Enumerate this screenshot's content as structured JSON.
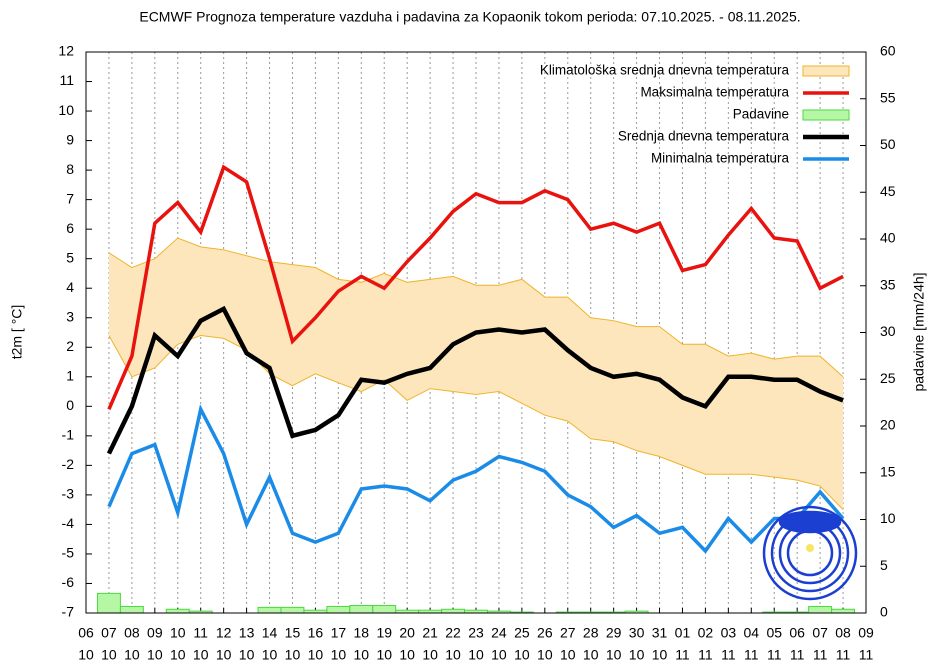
{
  "chart_data": {
    "type": "line",
    "title": "ECMWF Prognoza temperature vazduha i padavina za Kopaonik tokom perioda: 07.10.2025. - 08.11.2025.",
    "y_label": "t2m [ °C]",
    "y2_label": "padavine [mm/24h]",
    "categories": [
      [
        "06",
        "10"
      ],
      [
        "07",
        "10"
      ],
      [
        "08",
        "10"
      ],
      [
        "09",
        "10"
      ],
      [
        "10",
        "10"
      ],
      [
        "11",
        "10"
      ],
      [
        "12",
        "10"
      ],
      [
        "13",
        "10"
      ],
      [
        "14",
        "10"
      ],
      [
        "15",
        "10"
      ],
      [
        "16",
        "10"
      ],
      [
        "17",
        "10"
      ],
      [
        "18",
        "10"
      ],
      [
        "19",
        "10"
      ],
      [
        "20",
        "10"
      ],
      [
        "21",
        "10"
      ],
      [
        "22",
        "10"
      ],
      [
        "23",
        "10"
      ],
      [
        "24",
        "10"
      ],
      [
        "25",
        "10"
      ],
      [
        "26",
        "10"
      ],
      [
        "27",
        "10"
      ],
      [
        "28",
        "10"
      ],
      [
        "29",
        "10"
      ],
      [
        "30",
        "10"
      ],
      [
        "31",
        "10"
      ],
      [
        "01",
        "11"
      ],
      [
        "02",
        "11"
      ],
      [
        "03",
        "11"
      ],
      [
        "04",
        "11"
      ],
      [
        "05",
        "11"
      ],
      [
        "06",
        "11"
      ],
      [
        "07",
        "11"
      ],
      [
        "08",
        "11"
      ],
      [
        "09",
        "11"
      ]
    ],
    "ylim": [
      -7,
      12
    ],
    "yticks": [
      -7,
      -6,
      -5,
      -4,
      -3,
      -2,
      -1,
      0,
      1,
      2,
      3,
      4,
      5,
      6,
      7,
      8,
      9,
      10,
      11,
      12
    ],
    "y2lim": [
      0,
      60
    ],
    "y2ticks": [
      0,
      5,
      10,
      15,
      20,
      25,
      30,
      35,
      40,
      45,
      50,
      55,
      60
    ],
    "grid": "vertical-dotted",
    "legend": "top-right",
    "series": [
      {
        "name": "Klimatološka srednja dnevna temperatura",
        "kind": "band",
        "color": "#fde6bc",
        "edge_color": "#f0b429",
        "upper": [
          null,
          5.2,
          4.7,
          5.0,
          5.7,
          5.4,
          5.3,
          5.1,
          4.9,
          4.8,
          4.7,
          4.3,
          4.2,
          4.5,
          4.2,
          4.3,
          4.4,
          4.1,
          4.1,
          4.3,
          3.7,
          3.7,
          3.0,
          2.9,
          2.7,
          2.7,
          2.1,
          2.1,
          1.7,
          1.8,
          1.6,
          1.7,
          1.7,
          1.0,
          null
        ],
        "lower": [
          null,
          2.4,
          1.0,
          1.3,
          2.1,
          2.4,
          2.3,
          1.9,
          1.1,
          0.7,
          1.1,
          0.8,
          0.5,
          0.9,
          0.2,
          0.6,
          0.5,
          0.4,
          0.5,
          0.1,
          -0.3,
          -0.5,
          -1.1,
          -1.2,
          -1.5,
          -1.7,
          -2.0,
          -2.3,
          -2.3,
          -2.3,
          -2.4,
          -2.5,
          -2.7,
          -3.5,
          null
        ]
      },
      {
        "name": "Maksimalna temperatura",
        "kind": "line",
        "color": "#e8120e",
        "values": [
          null,
          -0.1,
          1.7,
          6.2,
          6.9,
          5.9,
          8.1,
          7.6,
          5.0,
          2.2,
          3.0,
          3.9,
          4.4,
          4.0,
          4.9,
          5.7,
          6.6,
          7.2,
          6.9,
          6.9,
          7.3,
          7.0,
          6.0,
          6.2,
          5.9,
          6.2,
          4.6,
          4.8,
          5.8,
          6.7,
          5.7,
          5.6,
          4.0,
          4.4,
          null
        ]
      },
      {
        "name": "Padavine",
        "kind": "bar",
        "axis": "y2",
        "color": "#b6f7a6",
        "edge_color": "#4cd940",
        "values": [
          null,
          2.1,
          0.7,
          0,
          0.4,
          0.2,
          0,
          0,
          0.6,
          0.6,
          0.3,
          0.7,
          0.8,
          0.8,
          0.3,
          0.3,
          0.4,
          0.3,
          0.2,
          0.1,
          0,
          0.1,
          0.1,
          0.1,
          0.2,
          0,
          0,
          0,
          0,
          0,
          0.1,
          0.1,
          0.7,
          0.4,
          null
        ]
      },
      {
        "name": "Srednja dnevna temperatura",
        "kind": "line",
        "color": "#000000",
        "values": [
          null,
          -1.6,
          0.0,
          2.4,
          1.7,
          2.9,
          3.3,
          1.8,
          1.3,
          -1.0,
          -0.8,
          -0.3,
          0.9,
          0.8,
          1.1,
          1.3,
          2.1,
          2.5,
          2.6,
          2.5,
          2.6,
          1.9,
          1.3,
          1.0,
          1.1,
          0.9,
          0.3,
          0.0,
          1.0,
          1.0,
          0.9,
          0.9,
          0.5,
          0.2,
          null
        ]
      },
      {
        "name": "Minimalna temperatura",
        "kind": "line",
        "color": "#1a8ce8",
        "values": [
          null,
          -3.4,
          -1.6,
          -1.3,
          -3.6,
          -0.1,
          -1.6,
          -4.0,
          -2.4,
          -4.3,
          -4.6,
          -4.3,
          -2.8,
          -2.7,
          -2.8,
          -3.2,
          -2.5,
          -2.2,
          -1.7,
          -1.9,
          -2.2,
          -3.0,
          -3.4,
          -4.1,
          -3.7,
          -4.3,
          -4.1,
          -4.9,
          -3.8,
          -4.6,
          -3.8,
          -3.8,
          -2.9,
          -3.8,
          null
        ]
      }
    ]
  }
}
